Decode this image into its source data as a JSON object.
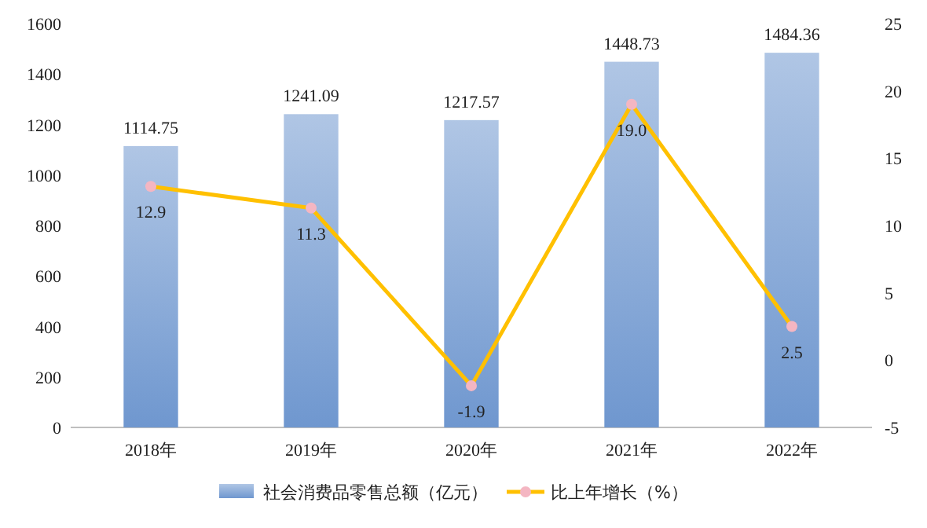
{
  "chart_data": {
    "type": "bar",
    "categories": [
      "2018年",
      "2019年",
      "2020年",
      "2021年",
      "2022年"
    ],
    "series": [
      {
        "name": "社会消费品零售总额（亿元）",
        "color": "#6f97cf",
        "values": [
          1114.75,
          1241.09,
          1217.57,
          1448.73,
          1484.36
        ],
        "value_labels": [
          "1114.75",
          "1241.09",
          "1217.57",
          "1448.73",
          "1484.36"
        ]
      },
      {
        "name": "比上年增长（%）",
        "type": "line",
        "axis": "y2",
        "color": "#ffc000",
        "marker": "circle",
        "values": [
          12.9,
          11.3,
          -1.9,
          19.0,
          2.5
        ],
        "value_labels": [
          "12.9",
          "11.3",
          "-1.9",
          "19.0",
          "2.5"
        ]
      }
    ],
    "ylim": [
      0,
      1600
    ],
    "yticks": [
      0,
      200,
      400,
      600,
      800,
      1000,
      1200,
      1400,
      1600
    ],
    "y2lim": [
      -5,
      25
    ],
    "y2ticks": [
      -5,
      0,
      5,
      10,
      15,
      20,
      25
    ],
    "legend": "bottom",
    "grid": false
  }
}
